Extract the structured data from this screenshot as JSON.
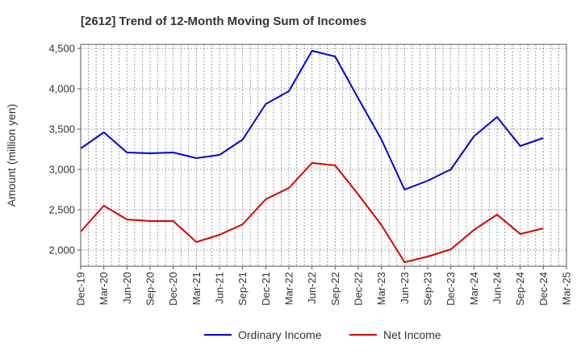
{
  "chart_data": {
    "type": "line",
    "title": "[2612]  Trend of 12-Month Moving Sum of Incomes",
    "ylabel": "Amount (million yen)",
    "xlabel": "",
    "ylim": [
      1800,
      4550
    ],
    "yticks": [
      2000,
      2500,
      3000,
      3500,
      4000,
      4500
    ],
    "ytick_labels": [
      "2,000",
      "2,500",
      "3,000",
      "3,500",
      "4,000",
      "4,500"
    ],
    "categories": [
      "Dec-19",
      "Mar-20",
      "Jun-20",
      "Sep-20",
      "Dec-20",
      "Mar-21",
      "Jun-21",
      "Sep-21",
      "Dec-21",
      "Mar-22",
      "Jun-22",
      "Sep-22",
      "Dec-22",
      "Mar-23",
      "Jun-23",
      "Sep-23",
      "Dec-23",
      "Mar-24",
      "Jun-24",
      "Sep-24",
      "Dec-24",
      "Mar-25"
    ],
    "grid": true,
    "legend_position": "bottom-center",
    "series": [
      {
        "name": "Ordinary Income",
        "color": "#0000dd",
        "values": [
          3260,
          3460,
          3210,
          3200,
          3210,
          3140,
          3180,
          3370,
          3810,
          3970,
          4470,
          4400,
          3880,
          3370,
          2750,
          2860,
          3000,
          3410,
          3650,
          3290,
          3390,
          null
        ]
      },
      {
        "name": "Net Income",
        "color": "#dd0000",
        "values": [
          2230,
          2550,
          2380,
          2360,
          2360,
          2100,
          2190,
          2320,
          2630,
          2770,
          3080,
          3050,
          2690,
          2310,
          1850,
          1920,
          2010,
          2250,
          2440,
          2200,
          2270,
          null
        ]
      }
    ]
  }
}
